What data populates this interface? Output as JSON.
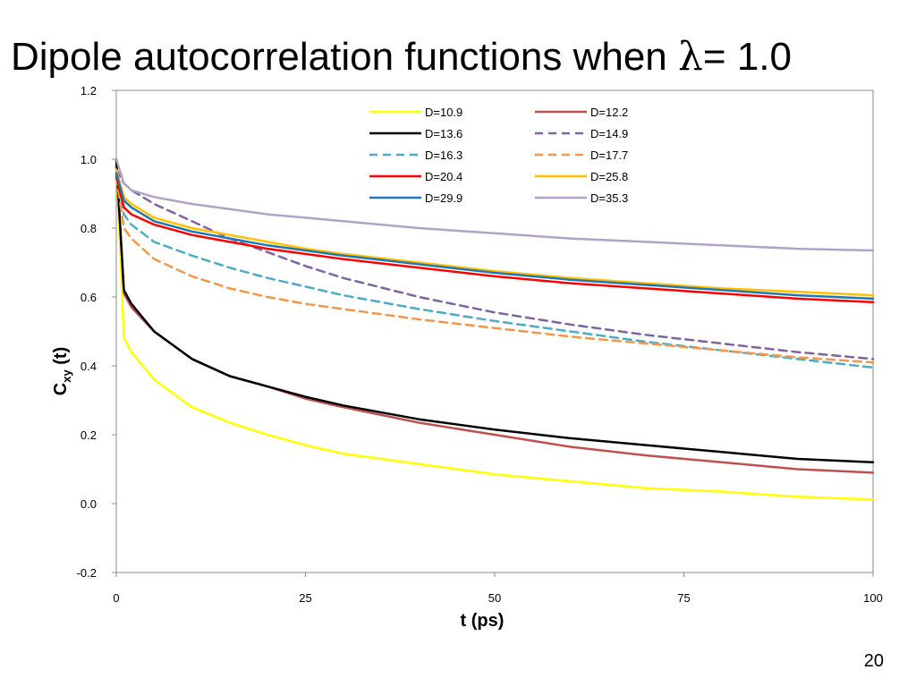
{
  "slide": {
    "title_prefix": "Dipole autocorrelation functions when ",
    "title_symbol": "λ",
    "title_suffix": "= 1.0",
    "page_number": "20"
  },
  "chart_data": {
    "type": "line",
    "xlabel": "t (ps)",
    "ylabel": "C",
    "ylabel_sub": "xy",
    "ylabel_suffix": "(t)",
    "xlim": [
      0,
      100
    ],
    "ylim": [
      -0.2,
      1.2
    ],
    "xticks": [
      "0",
      "25",
      "50",
      "75",
      "100"
    ],
    "xtick_values": [
      0,
      25,
      50,
      75,
      100
    ],
    "yticks": [
      "-0.2",
      "0.0",
      "0.2",
      "0.4",
      "0.6",
      "0.8",
      "1.0",
      "1.2"
    ],
    "ytick_values": [
      -0.2,
      0.0,
      0.2,
      0.4,
      0.6,
      0.8,
      1.0,
      1.2
    ],
    "grid": false,
    "legend_position": "top-right",
    "x": [
      0,
      1,
      2,
      5,
      10,
      15,
      20,
      25,
      30,
      40,
      50,
      60,
      70,
      80,
      90,
      100
    ],
    "series": [
      {
        "name": "D=10.9",
        "color": "#FFFF00",
        "dash": false,
        "values": [
          1.0,
          0.48,
          0.44,
          0.36,
          0.28,
          0.235,
          0.2,
          0.17,
          0.145,
          0.115,
          0.085,
          0.065,
          0.045,
          0.035,
          0.02,
          0.012
        ]
      },
      {
        "name": "D=12.2",
        "color": "#C0504D",
        "dash": false,
        "values": [
          1.0,
          0.61,
          0.57,
          0.5,
          0.42,
          0.37,
          0.34,
          0.305,
          0.28,
          0.235,
          0.2,
          0.165,
          0.14,
          0.12,
          0.1,
          0.09
        ]
      },
      {
        "name": "D=13.6",
        "color": "#000000",
        "dash": false,
        "values": [
          1.0,
          0.62,
          0.58,
          0.5,
          0.42,
          0.37,
          0.34,
          0.31,
          0.285,
          0.245,
          0.215,
          0.19,
          0.17,
          0.15,
          0.13,
          0.12
        ]
      },
      {
        "name": "D=14.9",
        "color": "#8064A2",
        "dash": true,
        "values": [
          0.97,
          0.93,
          0.91,
          0.87,
          0.82,
          0.77,
          0.73,
          0.69,
          0.655,
          0.6,
          0.555,
          0.52,
          0.49,
          0.465,
          0.44,
          0.42
        ]
      },
      {
        "name": "D=16.3",
        "color": "#4BACC6",
        "dash": true,
        "values": [
          0.96,
          0.84,
          0.81,
          0.76,
          0.72,
          0.685,
          0.655,
          0.63,
          0.605,
          0.565,
          0.53,
          0.5,
          0.47,
          0.445,
          0.42,
          0.395
        ]
      },
      {
        "name": "D=17.7",
        "color": "#F79646",
        "dash": true,
        "values": [
          0.95,
          0.8,
          0.77,
          0.71,
          0.66,
          0.625,
          0.6,
          0.58,
          0.565,
          0.535,
          0.51,
          0.485,
          0.465,
          0.445,
          0.425,
          0.41
        ]
      },
      {
        "name": "D=20.4",
        "color": "#FF0000",
        "dash": false,
        "values": [
          0.95,
          0.86,
          0.84,
          0.81,
          0.78,
          0.76,
          0.74,
          0.725,
          0.71,
          0.685,
          0.66,
          0.64,
          0.625,
          0.61,
          0.595,
          0.585
        ]
      },
      {
        "name": "D=25.8",
        "color": "#FFC000",
        "dash": false,
        "values": [
          0.97,
          0.89,
          0.87,
          0.83,
          0.8,
          0.78,
          0.76,
          0.74,
          0.725,
          0.7,
          0.675,
          0.655,
          0.64,
          0.625,
          0.615,
          0.605
        ]
      },
      {
        "name": "D=29.9",
        "color": "#1F77B4",
        "dash": false,
        "values": [
          0.96,
          0.88,
          0.86,
          0.82,
          0.79,
          0.77,
          0.75,
          0.735,
          0.72,
          0.695,
          0.67,
          0.65,
          0.635,
          0.62,
          0.605,
          0.595
        ]
      },
      {
        "name": "D=35.3",
        "color": "#B3A2C7",
        "dash": false,
        "values": [
          1.0,
          0.93,
          0.91,
          0.89,
          0.87,
          0.855,
          0.84,
          0.83,
          0.82,
          0.8,
          0.785,
          0.77,
          0.76,
          0.75,
          0.74,
          0.735
        ]
      }
    ]
  }
}
